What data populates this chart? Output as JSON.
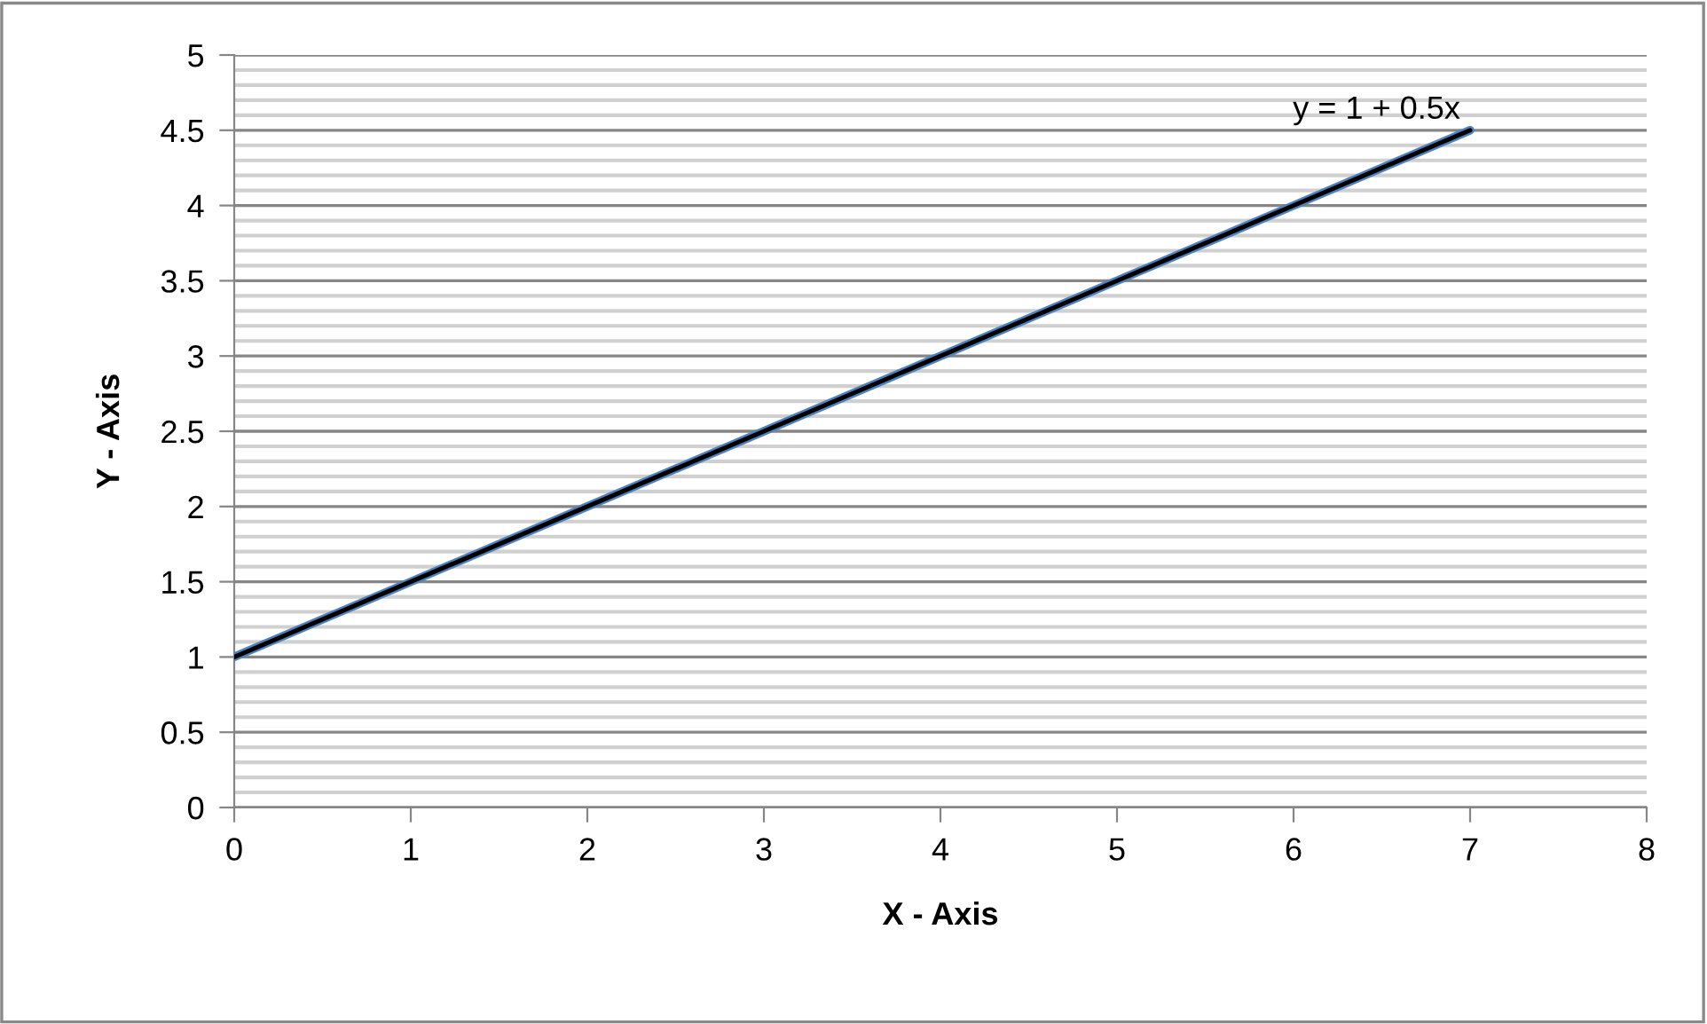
{
  "chart_data": {
    "type": "line",
    "xlabel": "X - Axis",
    "ylabel": "Y - Axis",
    "xlim": [
      0,
      8
    ],
    "ylim": [
      0,
      5
    ],
    "xticks": [
      0,
      1,
      2,
      3,
      4,
      5,
      6,
      7,
      8
    ],
    "yticks": [
      0,
      {
        "value": 0.5,
        "label": "0.5"
      },
      1,
      {
        "value": 1.5,
        "label": "1.5"
      },
      2,
      {
        "value": 2.5,
        "label": "2.5"
      },
      3,
      {
        "value": 3.5,
        "label": "3.5"
      },
      4,
      {
        "value": 4.5,
        "label": "4.5"
      },
      5
    ],
    "grid": "y",
    "marker": "none",
    "line_style": "solid",
    "series": [
      {
        "color": "#4f81bd",
        "x": [
          0,
          1,
          2,
          3,
          4,
          5,
          6,
          7
        ],
        "values": [
          1,
          1.5,
          2,
          2.5,
          3,
          3.5,
          4,
          4.5
        ]
      },
      {
        "color": "#000000",
        "x": [
          0,
          7
        ],
        "values": [
          1,
          4.5
        ]
      }
    ],
    "annotations": [
      {
        "text": "y = 1 + 0.5x",
        "x": 7,
        "y": 4.5
      }
    ]
  }
}
